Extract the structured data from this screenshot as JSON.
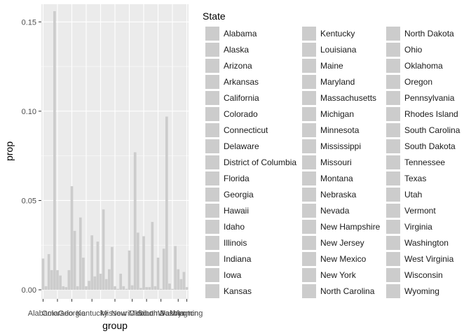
{
  "chart_data": {
    "type": "bar",
    "xlabel": "group",
    "ylabel": "prop",
    "ylim": [
      0,
      0.165
    ],
    "yticks": [
      0.0,
      0.05,
      0.1,
      0.15
    ],
    "ytick_labels": [
      "0.00",
      "0.05",
      "0.10",
      "0.15"
    ],
    "x_tick_labels": [
      "Alabama",
      "Colorado",
      "Georgia",
      "Kentucky",
      "Missouri",
      "New Mexico",
      "Oklahoma",
      "South Dakota",
      "Washington",
      "Wyoming"
    ],
    "bar_color": "#cccccc",
    "panel_bg": "#ebebeb",
    "grid": true,
    "legend_position": "right",
    "legend_title": "State",
    "categories": [
      "Alabama",
      "Alaska",
      "Arizona",
      "Arkansas",
      "California",
      "Colorado",
      "Connecticut",
      "Delaware",
      "District of Columbia",
      "Florida",
      "Georgia",
      "Hawaii",
      "Idaho",
      "Illinois",
      "Indiana",
      "Iowa",
      "Kansas",
      "Kentucky",
      "Louisiana",
      "Maine",
      "Maryland",
      "Massachusetts",
      "Michigan",
      "Minnesota",
      "Mississippi",
      "Missouri",
      "Montana",
      "Nebraska",
      "Nevada",
      "New Hampshire",
      "New Jersey",
      "New Mexico",
      "New York",
      "North Carolina",
      "North Dakota",
      "Ohio",
      "Oklahoma",
      "Oregon",
      "Pennsylvania",
      "Rhodes Island",
      "South Carolina",
      "South Dakota",
      "Tennessee",
      "Texas",
      "Utah",
      "Vermont",
      "Virginia",
      "Washington",
      "West Virginia",
      "Wisconsin",
      "Wyoming"
    ],
    "values": [
      0.0175,
      0.002,
      0.02,
      0.011,
      0.156,
      0.011,
      0.008,
      0.002,
      0.0015,
      0.011,
      0.058,
      0.033,
      0.002,
      0.0405,
      0.018,
      0.002,
      0.005,
      0.0305,
      0.0075,
      0.027,
      0.009,
      0.045,
      0.006,
      0.0115,
      0.024,
      0.002,
      0.0005,
      0.009,
      0.002,
      0.0005,
      0.022,
      0.0025,
      0.077,
      0.032,
      0.001,
      0.03,
      0.0015,
      0.0015,
      0.038,
      0.002,
      0.018,
      0.0005,
      0.023,
      0.097,
      0.0035,
      0.0005,
      0.0245,
      0.0115,
      0.006,
      0.01,
      0.0015
    ]
  }
}
